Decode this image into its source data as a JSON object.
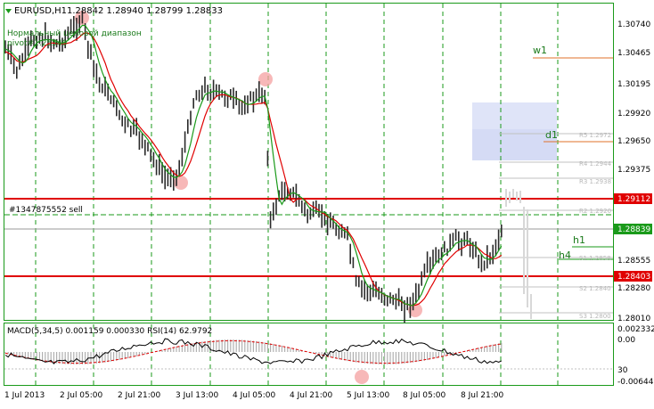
{
  "chart_header": {
    "collapse_icon": "triangle-down-icon",
    "symbol": "EURUSD,H1",
    "ohlc": "1.28842 1.28940 1.28799 1.28833"
  },
  "indicator_labels": {
    "range_line1": "Нормальный ценовой диапазон",
    "range_line2": "pivot#1.25540"
  },
  "order_label": "#1347875552 sell",
  "level_labels": {
    "w1": "w1",
    "d1": "d1",
    "h1": "h1",
    "h4": "h4",
    "r5": "R5 1.2972",
    "r4": "R4 1.2944",
    "r3": "R3 1.2938",
    "r2": "R2 1.2920",
    "s1": "S1 1.2858",
    "s2": "S2 1.2840",
    "s3": "S3 1.2800"
  },
  "price_axis": {
    "ticks": [
      "1.30740",
      "1.30465",
      "1.30195",
      "1.29920",
      "1.29650",
      "1.29375",
      "1.28555",
      "1.28280",
      "1.28010"
    ],
    "highlighted": [
      {
        "label": "1.29112",
        "color": "#e00000"
      },
      {
        "label": "1.28839",
        "color": "#1a9a1a"
      },
      {
        "label": "1.28403",
        "color": "#e00000"
      }
    ]
  },
  "subwindow": {
    "title": "MACD(5,34,5) 0.001159 0.000330 RSI(14) 62.9792",
    "ticks": [
      "0.002332",
      "0.00",
      "30",
      "-0.006443"
    ]
  },
  "time_axis": {
    "labels": [
      "1 Jul 2013",
      "2 Jul 05:00",
      "2 Jul 21:00",
      "3 Jul 13:00",
      "4 Jul 05:00",
      "4 Jul 21:00",
      "5 Jul 13:00",
      "8 Jul 05:00",
      "8 Jul 21:00"
    ]
  },
  "colors": {
    "grid": "#1a9a1a",
    "frame": "#1a9a1a",
    "bars": "#2a2a2a",
    "ma_fast": "#1a9a1a",
    "ma_slow": "#e00000",
    "level_red": "#e00000",
    "w1_line": "#e0702a",
    "pivot_box": "#dfe4f8",
    "rsi": "#e00000",
    "macd": "#000000"
  }
}
